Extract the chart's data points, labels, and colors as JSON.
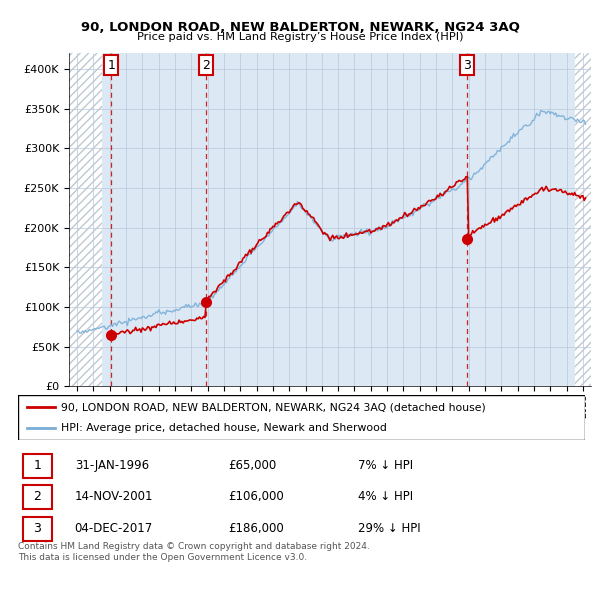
{
  "title": "90, LONDON ROAD, NEW BALDERTON, NEWARK, NG24 3AQ",
  "subtitle": "Price paid vs. HM Land Registry’s House Price Index (HPI)",
  "hpi_color": "#7aaed6",
  "price_color": "#cc0000",
  "marker_color": "#cc0000",
  "vline_color": "#cc0000",
  "bg_fill_color": "#dce9f5",
  "hatch_color": "#c0c8d0",
  "ylim": [
    0,
    420000
  ],
  "yticks": [
    0,
    50000,
    100000,
    150000,
    200000,
    250000,
    300000,
    350000,
    400000
  ],
  "ytick_labels": [
    "£0",
    "£50K",
    "£100K",
    "£150K",
    "£200K",
    "£250K",
    "£300K",
    "£350K",
    "£400K"
  ],
  "trans_years": [
    1996.083,
    2001.875,
    2017.917
  ],
  "trans_prices": [
    65000,
    106000,
    186000
  ],
  "trans_labels": [
    "1",
    "2",
    "3"
  ],
  "legend_entries": [
    "90, LONDON ROAD, NEW BALDERTON, NEWARK, NG24 3AQ (detached house)",
    "HPI: Average price, detached house, Newark and Sherwood"
  ],
  "table_rows": [
    [
      "1",
      "31-JAN-1996",
      "£65,000",
      "7% ↓ HPI"
    ],
    [
      "2",
      "14-NOV-2001",
      "£106,000",
      "4% ↓ HPI"
    ],
    [
      "3",
      "04-DEC-2017",
      "£186,000",
      "29% ↓ HPI"
    ]
  ],
  "footnote": "Contains HM Land Registry data © Crown copyright and database right 2024.\nThis data is licensed under the Open Government Licence v3.0.",
  "xlim_start": 1993.5,
  "xlim_end": 2025.5,
  "hatch_left_end": 1995.5,
  "hatch_right_start": 2024.5
}
